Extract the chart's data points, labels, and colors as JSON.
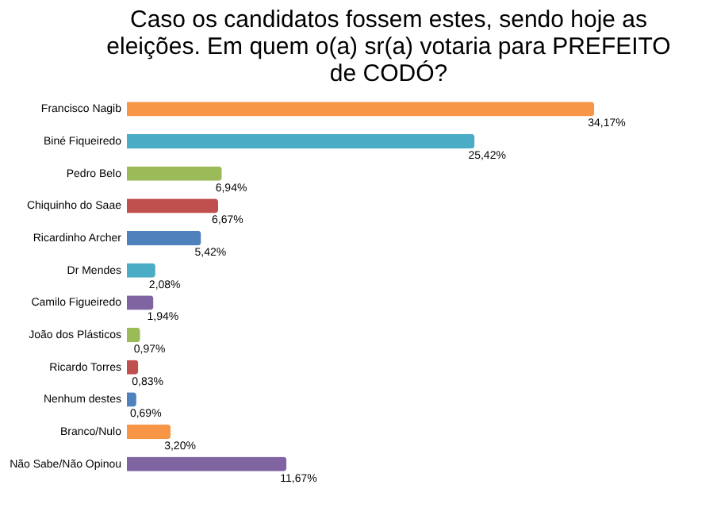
{
  "chart_data": {
    "type": "bar",
    "orientation": "horizontal",
    "title": "Caso os candidatos fossem estes, sendo hoje as eleições. Em quem  o(a) sr(a) votaria para PREFEITO de CODÓ?",
    "categories": [
      "Francisco Nagib",
      "Biné Fiqueiredo",
      "Pedro Belo",
      "Chiquinho do Saae",
      "Ricardinho Archer",
      "Dr Mendes",
      "Camilo Figueiredo",
      "João dos Plásticos",
      "Ricardo Torres",
      "Nenhum destes",
      "Branco/Nulo",
      "Não Sabe/Não Opinou"
    ],
    "values": [
      34.17,
      25.42,
      6.94,
      6.67,
      5.42,
      2.08,
      1.94,
      0.97,
      0.83,
      0.69,
      3.2,
      11.67
    ],
    "value_labels": [
      "34,17%",
      "25,42%",
      "6,94%",
      "6,67%",
      "5,42%",
      "2,08%",
      "1,94%",
      "0,97%",
      "0,83%",
      "0,69%",
      "3,20%",
      "11,67%"
    ],
    "colors": [
      "#f79646",
      "#4bacc6",
      "#9bbb59",
      "#c0504d",
      "#4f81bd",
      "#4bacc6",
      "#8064a2",
      "#9bbb59",
      "#c0504d",
      "#4f81bd",
      "#f79646",
      "#8064a2"
    ],
    "tick_labels": "y"
  }
}
